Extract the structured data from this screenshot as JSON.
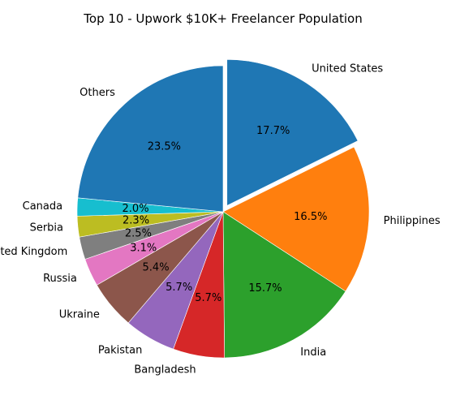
{
  "chart_data": {
    "type": "pie",
    "title": "Top 10 - Upwork $10K+ Freelancer Population",
    "start_angle_deg": 90,
    "direction": "clockwise",
    "slices": [
      {
        "label": "United States",
        "value": 17.7,
        "pct_label": "17.7%",
        "color": "#1f77b4",
        "exploded": true
      },
      {
        "label": "Philippines",
        "value": 16.5,
        "pct_label": "16.5%",
        "color": "#ff7f0e",
        "exploded": false
      },
      {
        "label": "India",
        "value": 15.7,
        "pct_label": "15.7%",
        "color": "#2ca02c",
        "exploded": false
      },
      {
        "label": "Bangladesh",
        "value": 5.7,
        "pct_label": "5.7%",
        "color": "#d62728",
        "exploded": false
      },
      {
        "label": "Pakistan",
        "value": 5.7,
        "pct_label": "5.7%",
        "color": "#9467bd",
        "exploded": false
      },
      {
        "label": "Ukraine",
        "value": 5.4,
        "pct_label": "5.4%",
        "color": "#8c564b",
        "exploded": false
      },
      {
        "label": "Russia",
        "value": 3.1,
        "pct_label": "3.1%",
        "color": "#e377c2",
        "exploded": false
      },
      {
        "label": "United Kingdom",
        "value": 2.5,
        "pct_label": "2.5%",
        "color": "#7f7f7f",
        "exploded": false
      },
      {
        "label": "Serbia",
        "value": 2.3,
        "pct_label": "2.3%",
        "color": "#bcbd22",
        "exploded": false
      },
      {
        "label": "Canada",
        "value": 2.0,
        "pct_label": "2.0%",
        "color": "#17becf",
        "exploded": false
      },
      {
        "label": "Others",
        "value": 23.5,
        "pct_label": "23.5%",
        "color": "#1f77b4",
        "exploded": false
      }
    ]
  }
}
